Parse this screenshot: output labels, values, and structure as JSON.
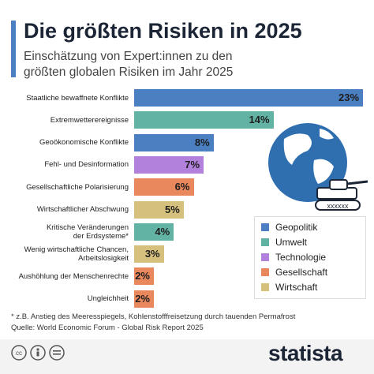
{
  "chart_data": {
    "type": "bar",
    "title": "Die größten Risiken in 2025",
    "subtitle": "Einschätzung von Expert:innen zu den\ngrößten globalen Risiken im Jahr 2025",
    "categories": [
      "Staatliche bewaffnete Konflikte",
      "Extremwetterereignisse",
      "Geoökonomische Konflikte",
      "Fehl- und Desinformation",
      "Gesellschaftliche Polarisierung",
      "Wirtschaftlicher Abschwung",
      "Kritische Veränderungen\nder Erdsysteme*",
      "Wenig wirtschaftliche Chancen,\nArbeitslosigkeit",
      "Aushöhlung der Menschenrechte",
      "Ungleichheit"
    ],
    "series": [
      {
        "name": "Geopolitik",
        "color": "#4a7fc1",
        "values": [
          23,
          null,
          8,
          null,
          null,
          null,
          null,
          null,
          null,
          null
        ],
        "value_labels": [
          "23%",
          null,
          "8%",
          null,
          null,
          null,
          null,
          null,
          null,
          null
        ]
      },
      {
        "name": "Umwelt",
        "color": "#63b3a5",
        "values": [
          null,
          14,
          null,
          null,
          null,
          null,
          4,
          null,
          null,
          null
        ],
        "value_labels": [
          null,
          "14%",
          null,
          null,
          null,
          null,
          "4%",
          null,
          null,
          null
        ]
      },
      {
        "name": "Technologie",
        "color": "#b281dc",
        "values": [
          null,
          null,
          null,
          7,
          null,
          null,
          null,
          null,
          null,
          null
        ],
        "value_labels": [
          null,
          null,
          null,
          "7%",
          null,
          null,
          null,
          null,
          null,
          null
        ]
      },
      {
        "name": "Gesellschaft",
        "color": "#e9875d",
        "values": [
          null,
          null,
          null,
          null,
          6,
          null,
          null,
          null,
          2,
          2
        ],
        "value_labels": [
          null,
          null,
          null,
          null,
          "6%",
          null,
          null,
          null,
          "2%",
          "2%"
        ]
      },
      {
        "name": "Wirtschaft",
        "color": "#d6c07d",
        "values": [
          null,
          null,
          null,
          null,
          null,
          5,
          null,
          3,
          null,
          null
        ],
        "value_labels": [
          null,
          null,
          null,
          null,
          null,
          "5%",
          null,
          "3%",
          null,
          null
        ]
      }
    ],
    "footnote": "* z.B. Anstieg des Meeresspiegels, Kohlenstofffreisetzung durch tauenden Permafrost",
    "source": "Quelle: World Economic Forum - Global Risk Report 2025",
    "brand": "statista"
  }
}
